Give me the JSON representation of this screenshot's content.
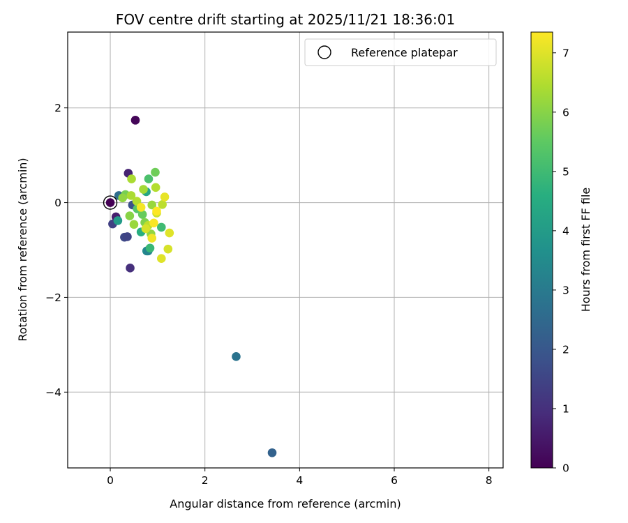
{
  "chart_data": {
    "type": "scatter",
    "title": "FOV centre drift starting at 2025/11/21 18:36:01",
    "xlabel": "Angular distance from reference (arcmin)",
    "ylabel": "Rotation from reference (arcmin)",
    "xlim": [
      -0.9,
      8.3
    ],
    "ylim": [
      -5.6,
      3.6
    ],
    "xticks": [
      0,
      2,
      4,
      6,
      8
    ],
    "yticks": [
      2,
      0,
      -2,
      -4
    ],
    "xtick_labels": [
      "0",
      "2",
      "4",
      "6",
      "8"
    ],
    "ytick_labels": [
      "2",
      "0",
      "−2",
      "−4"
    ],
    "grid": true,
    "legend": {
      "placement": "upper-right",
      "entries": [
        "Reference platepar"
      ]
    },
    "reference_point": {
      "x": 0,
      "y": 0
    },
    "colorbar": {
      "label": "Hours from first FF file",
      "colormap": "viridis",
      "range": [
        0,
        7.35
      ],
      "ticks": [
        0,
        1,
        2,
        3,
        4,
        5,
        6,
        7
      ],
      "tick_labels": [
        "0",
        "1",
        "2",
        "3",
        "4",
        "5",
        "6",
        "7"
      ]
    },
    "points": [
      {
        "x": 0.0,
        "y": 0.0,
        "hours": 0.0
      },
      {
        "x": 0.53,
        "y": 1.74,
        "hours": 0.1
      },
      {
        "x": 0.38,
        "y": 0.62,
        "hours": 0.7
      },
      {
        "x": 0.12,
        "y": -0.3,
        "hours": 0.6
      },
      {
        "x": 0.05,
        "y": -0.45,
        "hours": 1.4
      },
      {
        "x": 0.42,
        "y": -1.38,
        "hours": 1.0
      },
      {
        "x": 0.3,
        "y": -0.73,
        "hours": 1.6
      },
      {
        "x": 0.36,
        "y": -0.72,
        "hours": 1.5
      },
      {
        "x": 0.47,
        "y": -0.05,
        "hours": 1.8
      },
      {
        "x": 0.18,
        "y": 0.15,
        "hours": 2.6
      },
      {
        "x": 3.42,
        "y": -5.28,
        "hours": 2.3
      },
      {
        "x": 2.66,
        "y": -3.25,
        "hours": 2.8
      },
      {
        "x": 0.77,
        "y": -1.02,
        "hours": 3.5
      },
      {
        "x": 0.8,
        "y": -1.02,
        "hours": 3.3
      },
      {
        "x": 0.16,
        "y": -0.38,
        "hours": 4.0
      },
      {
        "x": 0.76,
        "y": 0.23,
        "hours": 4.3
      },
      {
        "x": 0.65,
        "y": -0.62,
        "hours": 4.6
      },
      {
        "x": 0.84,
        "y": -0.96,
        "hours": 4.9
      },
      {
        "x": 0.81,
        "y": 0.5,
        "hours": 5.2
      },
      {
        "x": 0.57,
        "y": -0.13,
        "hours": 5.4
      },
      {
        "x": 1.08,
        "y": -0.52,
        "hours": 5.0
      },
      {
        "x": 0.68,
        "y": -0.25,
        "hours": 5.6
      },
      {
        "x": 0.32,
        "y": 0.17,
        "hours": 5.8
      },
      {
        "x": 0.41,
        "y": -0.28,
        "hours": 6.0
      },
      {
        "x": 0.95,
        "y": 0.64,
        "hours": 5.7
      },
      {
        "x": 0.73,
        "y": -0.42,
        "hours": 5.9
      },
      {
        "x": 0.86,
        "y": -0.66,
        "hours": 6.1
      },
      {
        "x": 0.88,
        "y": -0.05,
        "hours": 6.2
      },
      {
        "x": 0.45,
        "y": 0.5,
        "hours": 6.4
      },
      {
        "x": 0.7,
        "y": 0.28,
        "hours": 6.3
      },
      {
        "x": 0.96,
        "y": 0.32,
        "hours": 6.5
      },
      {
        "x": 0.5,
        "y": -0.46,
        "hours": 6.2
      },
      {
        "x": 1.1,
        "y": -0.04,
        "hours": 6.6
      },
      {
        "x": 0.26,
        "y": 0.1,
        "hours": 6.1
      },
      {
        "x": 0.44,
        "y": 0.15,
        "hours": 6.4
      },
      {
        "x": 0.56,
        "y": 0.03,
        "hours": 6.5
      },
      {
        "x": 0.8,
        "y": -0.48,
        "hours": 6.6
      },
      {
        "x": 0.98,
        "y": -0.22,
        "hours": 6.8
      },
      {
        "x": 1.22,
        "y": -0.98,
        "hours": 6.9
      },
      {
        "x": 1.25,
        "y": -0.64,
        "hours": 7.0
      },
      {
        "x": 1.08,
        "y": -1.18,
        "hours": 7.0
      },
      {
        "x": 1.15,
        "y": 0.12,
        "hours": 7.1
      },
      {
        "x": 0.88,
        "y": -0.75,
        "hours": 7.2
      },
      {
        "x": 0.65,
        "y": -0.1,
        "hours": 7.25
      },
      {
        "x": 0.92,
        "y": -0.43,
        "hours": 7.3
      },
      {
        "x": 0.98,
        "y": -0.18,
        "hours": 7.35
      },
      {
        "x": 0.75,
        "y": -0.55,
        "hours": 6.9
      }
    ]
  }
}
